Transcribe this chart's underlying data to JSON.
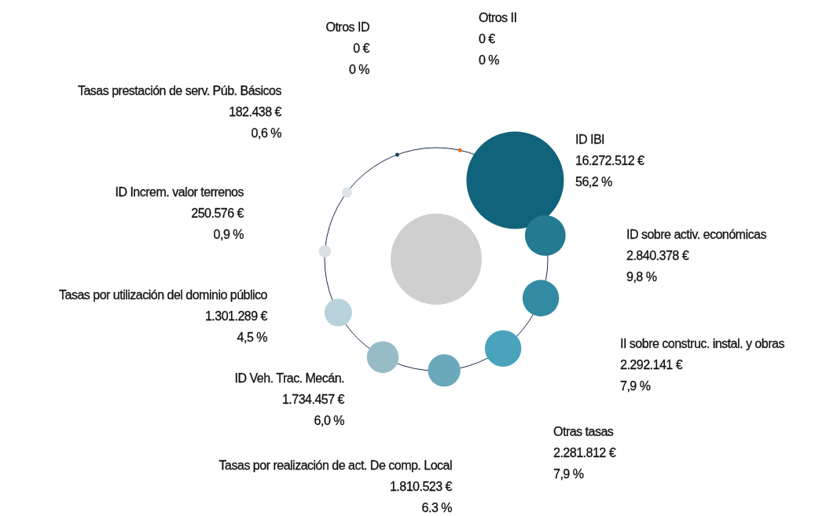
{
  "chart_data": {
    "type": "other",
    "categories": [
      "ID IBI",
      "ID sobre activ. económicas",
      "II sobre construc. instal. y obras",
      "Otras tasas",
      "Tasas por realización de act. De comp. Local",
      "ID Veh. Trac. Mecán.",
      "Tasas por utilización del dominio público",
      "ID Increm. valor terrenos",
      "Tasas prestación de serv. Púb. Básicos",
      "Otros ID",
      "Otros II"
    ],
    "colors": [
      "#10637a",
      "#237a91",
      "#338ba3",
      "#4aa3bc",
      "#6aa9bb",
      "#97bcc6",
      "#b8d3dc",
      "#d9dfe3",
      "#dde4e8",
      "#1a4a5a",
      "#e07020"
    ],
    "series": [
      {
        "values": [
          16272512,
          2840378,
          2292141,
          2281812,
          1810523,
          1734457,
          1301289,
          250576,
          182438,
          0,
          0
        ],
        "value_labels": [
          "16.272.512 €",
          "2.840.378 €",
          "2.292.141 €",
          "2.281.812 €",
          "1.810.523 €",
          "1.734.457 €",
          "1.301.289 €",
          "250.576 €",
          "182.438 €",
          "0 €",
          "0 €"
        ]
      },
      {
        "values": [
          56.2,
          9.8,
          7.9,
          7.9,
          6.3,
          6.0,
          4.5,
          0.9,
          0.6,
          0,
          0
        ],
        "value_labels": [
          "56,2 %",
          "9,8 %",
          "7,9 %",
          "7,9 %",
          "6.3 %",
          "6,0 %",
          "4,5 %",
          "0,9 %",
          "0,6 %",
          "0 %",
          "0 %"
        ]
      }
    ]
  }
}
